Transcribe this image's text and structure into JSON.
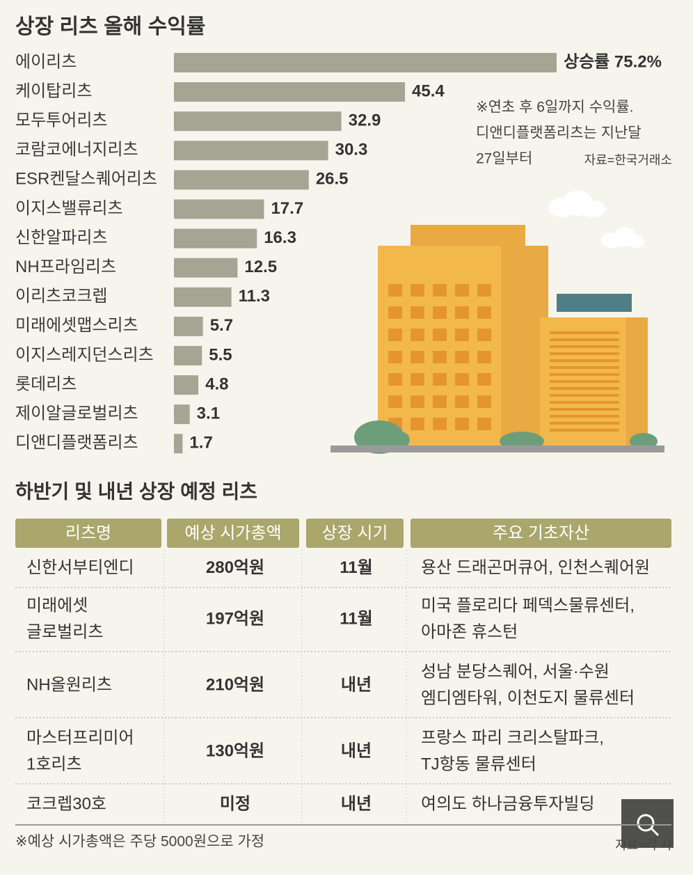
{
  "chart_data": {
    "type": "bar",
    "orientation": "horizontal",
    "title": "상장 리츠 올해 수익률",
    "categories": [
      "에이리츠",
      "케이탑리츠",
      "모두투어리츠",
      "코람코에너지리츠",
      "ESR켄달스퀘어리츠",
      "이지스밸류리츠",
      "신한알파리츠",
      "NH프라임리츠",
      "이리츠코크렙",
      "미래에셋맵스리츠",
      "이지스레지던스리츠",
      "롯데리츠",
      "제이알글로벌리츠",
      "디앤디플랫폼리츠"
    ],
    "values": [
      75.2,
      45.4,
      32.9,
      30.3,
      26.5,
      17.7,
      16.3,
      12.5,
      11.3,
      5.7,
      5.5,
      4.8,
      3.1,
      1.7
    ],
    "value_labels": [
      "상승률 75.2%",
      "45.4",
      "32.9",
      "30.3",
      "26.5",
      "17.7",
      "16.3",
      "12.5",
      "11.3",
      "5.7",
      "5.5",
      "4.8",
      "3.1",
      "1.7"
    ],
    "color": "#a6a594",
    "annotations": [
      "※연초 후 6일까지 수익률.",
      "디앤디플랫폼리츠는 지난달",
      "27일부터"
    ],
    "source": "자료=한국거래소"
  },
  "table": {
    "title": "하반기 및 내년 상장 예정 리츠",
    "header": [
      "리츠명",
      "예상 시가총액",
      "상장 시기",
      "주요 기초자산"
    ],
    "rows": [
      [
        [
          "신한서부티엔디"
        ],
        [
          "280억원"
        ],
        [
          "11월"
        ],
        [
          "용산 드래곤머큐어, 인천스퀘어원"
        ]
      ],
      [
        [
          "미래에셋",
          "글로벌리츠"
        ],
        [
          "197억원"
        ],
        [
          "11월"
        ],
        [
          "미국 플로리다 페덱스물류센터,",
          "아마존 휴스턴"
        ]
      ],
      [
        [
          "NH올원리츠"
        ],
        [
          "210억원"
        ],
        [
          "내년"
        ],
        [
          "성남 분당스퀘어, 서울·수원",
          "엠디엠타워, 이천도지 물류센터"
        ]
      ],
      [
        [
          "마스터프리미어",
          "1호리츠"
        ],
        [
          "130억원"
        ],
        [
          "내년"
        ],
        [
          "프랑스 파리 크리스탈파크,",
          "TJ항동 물류센터"
        ]
      ],
      [
        [
          "코크렙30호"
        ],
        [
          "미정"
        ],
        [
          "내년"
        ],
        [
          "여의도 하나금융투자빌딩"
        ]
      ]
    ],
    "note": "※예상 시가총액은 주당 5000원으로 가정",
    "source": "자료=각 사"
  }
}
